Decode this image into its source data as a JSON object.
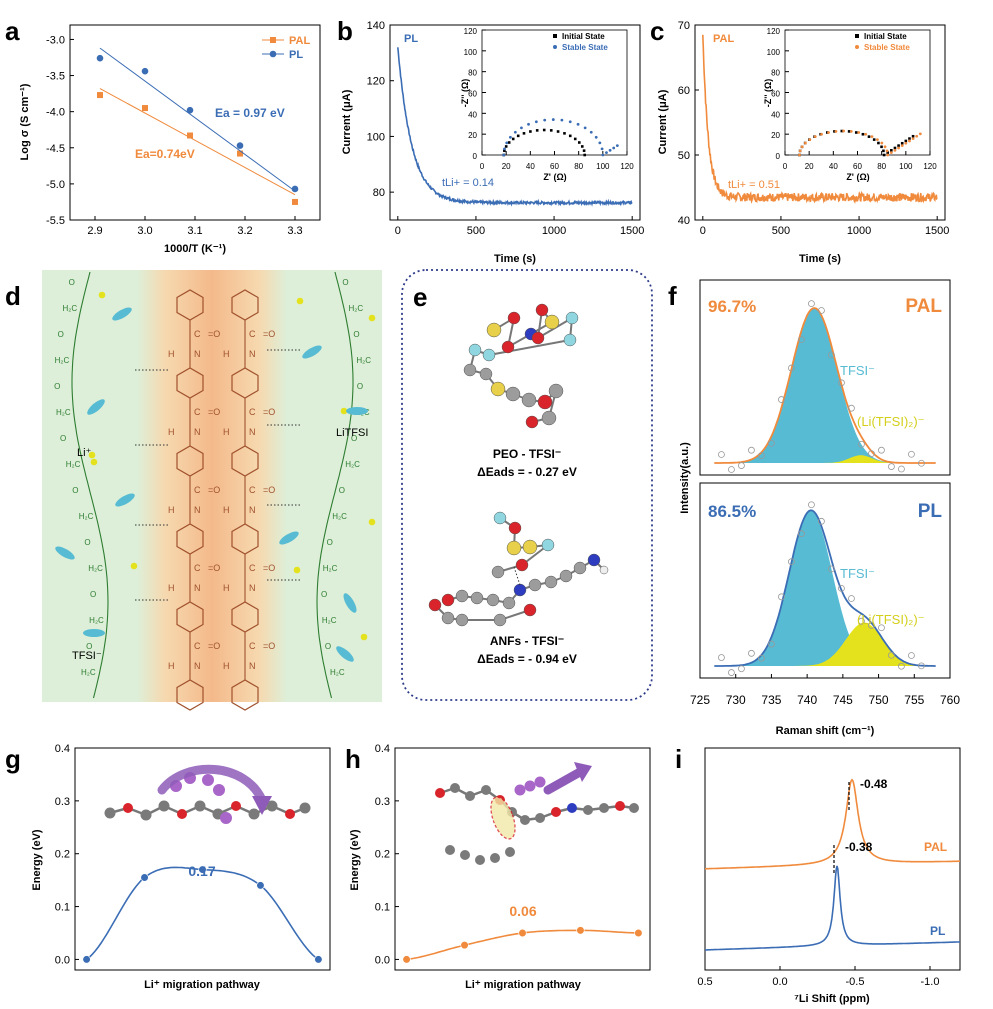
{
  "colors": {
    "pal": "#F08A3C",
    "pl": "#3B6DB5",
    "teal": "#56BBD3",
    "yellow": "#E4E21C",
    "green": "#DDEFD8",
    "orangeband": "#F6C79A",
    "mol": "#A0522D",
    "leftchain": "#2E7D32",
    "dash": "#2F3C8C",
    "purple": "#8E5CB8"
  },
  "panels": {
    "a": {
      "label": "a",
      "xlabel": "1000/T (K⁻¹)",
      "ylabel": "Log σ (S cm⁻¹)",
      "legend_pal": "PAL",
      "legend_pl": "PL",
      "ann_pl": "Ea = 0.97 eV",
      "ann_pal": "Ea=0.74eV"
    },
    "b": {
      "label": "b",
      "series_label": "PL",
      "xlabel": "Time (s)",
      "ylabel": "Current (μA)",
      "t_li": "tLi+ = 0.14",
      "inset_xlabel": "Z' (Ω)",
      "inset_ylabel": "-Z'' (Ω)",
      "legend_initial": "Initial State",
      "legend_stable": "Stable State"
    },
    "c": {
      "label": "c",
      "series_label": "PAL",
      "xlabel": "Time (s)",
      "ylabel": "Current (μA)",
      "t_li": "tLi+ = 0.51",
      "inset_xlabel": "Z' (Ω)",
      "inset_ylabel": "-Z'' (Ω)",
      "legend_initial": "Initial State",
      "legend_stable": "Stable State"
    },
    "d": {
      "label": "d",
      "li": "Li⁺",
      "litfsi": "LiTFSI",
      "tfsi": "TFSI⁻"
    },
    "e": {
      "label": "e",
      "peo_title": "PEO - TFSI⁻",
      "peo_energy": "ΔEads = - 0.27 eV",
      "anf_title": "ANFs - TFSI⁻",
      "anf_energy": "ΔEads = - 0.94 eV"
    },
    "f": {
      "label": "f",
      "top_pct": "96.7%",
      "top_name": "PAL",
      "bot_pct": "86.5%",
      "bot_name": "PL",
      "tfsi": "TFSI⁻",
      "litfsi2": "(Li(TFSI)₂)⁻",
      "xlabel": "Raman shift (cm⁻¹)",
      "ylabel": "Intensity(a.u.)"
    },
    "g": {
      "label": "g",
      "xlabel": "Li⁺ migration pathway",
      "ylabel": "Energy (eV)",
      "barrier": "0.17"
    },
    "h": {
      "label": "h",
      "xlabel": "Li⁺ migration pathway",
      "ylabel": "Energy (eV)",
      "barrier": "0.06"
    },
    "i": {
      "label": "i",
      "xlabel": "⁷Li Shift (ppm)",
      "pal_name": "PAL",
      "pl_name": "PL",
      "pal_peak": "-0.48",
      "pl_peak": "-0.38"
    }
  },
  "chart_data": [
    {
      "panel": "a",
      "type": "scatter",
      "xlabel": "1000/T (K⁻¹)",
      "ylabel": "Log σ (S cm⁻¹)",
      "xlim": [
        2.85,
        3.35
      ],
      "ylim": [
        -5.5,
        -2.8
      ],
      "xticks": [
        2.9,
        3.0,
        3.1,
        3.2,
        3.3
      ],
      "yticks": [
        -3.0,
        -3.5,
        -4.0,
        -4.5,
        -5.0,
        -5.5
      ],
      "series": [
        {
          "name": "PAL",
          "x": [
            2.91,
            3.0,
            3.09,
            3.19,
            3.3
          ],
          "y": [
            -3.77,
            -3.95,
            -4.33,
            -4.58,
            -5.25
          ],
          "fit": [
            [
              2.91,
              -3.68
            ],
            [
              3.3,
              -5.15
            ]
          ]
        },
        {
          "name": "PL",
          "x": [
            2.91,
            3.0,
            3.09,
            3.19,
            3.3
          ],
          "y": [
            -3.26,
            -3.44,
            -3.98,
            -4.47,
            -5.07
          ],
          "fit": [
            [
              2.91,
              -3.12
            ],
            [
              3.3,
              -5.1
            ]
          ]
        }
      ]
    },
    {
      "panel": "b",
      "type": "line",
      "xlabel": "Time (s)",
      "ylabel": "Current (μA)",
      "xlim": [
        -50,
        1550
      ],
      "ylim": [
        70,
        140
      ],
      "xticks": [
        0,
        500,
        1000,
        1500
      ],
      "yticks": [
        80,
        100,
        120,
        140
      ],
      "decay": {
        "start": 132,
        "plateau": 76.2,
        "tau": 90
      },
      "inset": {
        "xlim": [
          0,
          120
        ],
        "ylim": [
          0,
          120
        ],
        "xticks": [
          0,
          20,
          40,
          60,
          80,
          100,
          120
        ],
        "yticks": [
          0,
          20,
          40,
          60,
          80,
          100,
          120
        ],
        "series": [
          {
            "name": "Initial State",
            "x_start": 18,
            "x_end": 85,
            "peak": 24
          },
          {
            "name": "Stable State",
            "x_start": 18,
            "x_end": 100,
            "peak": 34,
            "tail_end": 112
          }
        ]
      }
    },
    {
      "panel": "c",
      "type": "line",
      "xlabel": "Time (s)",
      "ylabel": "Current (μA)",
      "xlim": [
        -50,
        1550
      ],
      "ylim": [
        40,
        70
      ],
      "xticks": [
        0,
        500,
        1000,
        1500
      ],
      "yticks": [
        40,
        50,
        60,
        70
      ],
      "decay": {
        "start": 68.5,
        "plateau": 43.5,
        "tau": 35
      },
      "inset": {
        "xlim": [
          0,
          120
        ],
        "ylim": [
          0,
          120
        ],
        "xticks": [
          0,
          20,
          40,
          60,
          80,
          100,
          120
        ],
        "yticks": [
          0,
          20,
          40,
          60,
          80,
          100,
          120
        ],
        "series": [
          {
            "name": "Initial State",
            "x_start": 12,
            "x_end": 82,
            "peak": 23,
            "tail_end": 108
          },
          {
            "name": "Stable State",
            "x_start": 12,
            "x_end": 85,
            "peak": 23,
            "tail_end": 112
          }
        ]
      }
    },
    {
      "panel": "f",
      "type": "line",
      "xlabel": "Raman shift (cm⁻¹)",
      "ylabel": "Intensity(a.u.)",
      "xlim": [
        725,
        760
      ],
      "xticks": [
        725,
        730,
        735,
        740,
        745,
        750,
        755,
        760
      ],
      "subplots": [
        {
          "name": "PAL",
          "tfsi_center": 741,
          "tfsi_width": 3.2,
          "tfsi_amp": 1.0,
          "li_center": 747.5,
          "li_width": 1.6,
          "li_amp": 0.05
        },
        {
          "name": "PL",
          "tfsi_center": 740.5,
          "tfsi_width": 3.0,
          "tfsi_amp": 1.0,
          "li_center": 748,
          "li_width": 2.6,
          "li_amp": 0.28
        }
      ]
    },
    {
      "panel": "g",
      "type": "line",
      "ylabel": "Energy (eV)",
      "xlabel": "Li⁺ migration pathway",
      "ylim": [
        -0.02,
        0.4
      ],
      "yticks": [
        0.0,
        0.1,
        0.2,
        0.3,
        0.4
      ],
      "x": [
        0,
        1,
        2,
        3,
        4
      ],
      "y": [
        0.0,
        0.155,
        0.17,
        0.14,
        0.0
      ]
    },
    {
      "panel": "h",
      "type": "line",
      "ylabel": "Energy (eV)",
      "xlabel": "Li⁺ migration pathway",
      "ylim": [
        -0.02,
        0.4
      ],
      "yticks": [
        0.0,
        0.1,
        0.2,
        0.3,
        0.4
      ],
      "x": [
        0,
        1,
        2,
        3,
        4
      ],
      "y": [
        0.0,
        0.027,
        0.05,
        0.055,
        0.05
      ]
    },
    {
      "panel": "i",
      "type": "line",
      "xlabel": "⁷Li Shift (ppm)",
      "xlim": [
        0.5,
        -1.2
      ],
      "xticks": [
        0.5,
        0.0,
        -0.5,
        -1.0
      ],
      "series": [
        {
          "name": "PAL",
          "peak": -0.48
        },
        {
          "name": "PL",
          "peak": -0.38
        }
      ]
    }
  ]
}
